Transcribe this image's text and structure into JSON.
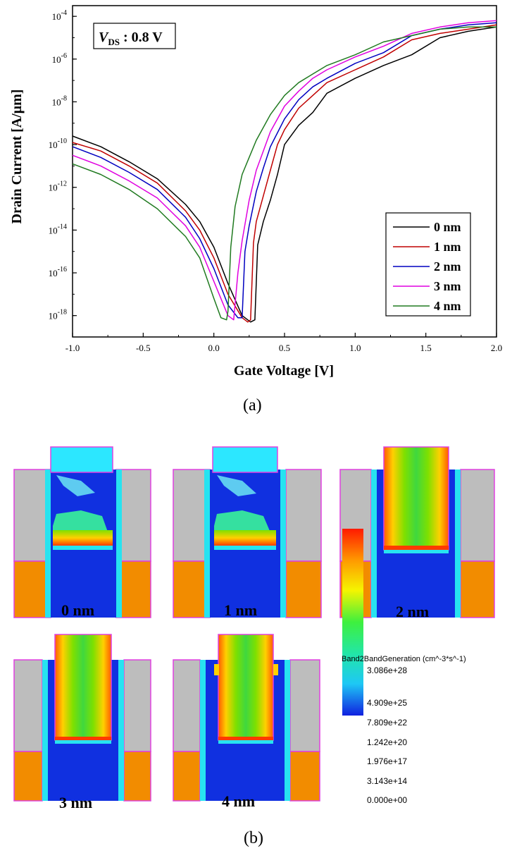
{
  "chart_data": {
    "type": "line",
    "title": "",
    "xlabel": "Gate Voltage [V]",
    "ylabel": "Drain Current [A/μm]",
    "xlim": [
      -1.0,
      2.0
    ],
    "ylim_log10": [
      -19,
      -3.5
    ],
    "log_y": true,
    "x_ticks": [
      "-1.0",
      "-0.5",
      "0.0",
      "0.5",
      "1.0",
      "1.5",
      "2.0"
    ],
    "y_tick_exponents": [
      "-18",
      "-16",
      "-14",
      "-12",
      "-10",
      "-8",
      "-6",
      "-4"
    ],
    "y_tick_base": "10",
    "annotation_main": "V",
    "annotation_sub": "DS",
    "annotation_rest": " : 0.8 V",
    "legend_position": "lower-right",
    "series": [
      {
        "name": "0 nm",
        "color": "#000000",
        "x": [
          -1.0,
          -0.8,
          -0.6,
          -0.4,
          -0.2,
          -0.1,
          0.0,
          0.1,
          0.2,
          0.26,
          0.29,
          0.31,
          0.35,
          0.4,
          0.45,
          0.5,
          0.6,
          0.7,
          0.8,
          1.0,
          1.2,
          1.4,
          1.6,
          1.8,
          2.0
        ],
        "log_y": [
          -9.6,
          -10.1,
          -10.8,
          -11.6,
          -12.8,
          -13.6,
          -14.8,
          -16.5,
          -18.0,
          -18.3,
          -18.2,
          -14.7,
          -13.6,
          -12.6,
          -11.4,
          -10.0,
          -9.1,
          -8.5,
          -7.6,
          -6.9,
          -6.3,
          -5.8,
          -5.0,
          -4.7,
          -4.5
        ]
      },
      {
        "name": "1 nm",
        "color": "#c00000",
        "x": [
          -1.0,
          -0.8,
          -0.6,
          -0.4,
          -0.2,
          -0.1,
          0.0,
          0.1,
          0.2,
          0.24,
          0.26,
          0.28,
          0.3,
          0.35,
          0.4,
          0.45,
          0.5,
          0.6,
          0.7,
          0.8,
          1.0,
          1.2,
          1.4,
          1.6,
          1.8,
          2.0
        ],
        "log_y": [
          -9.9,
          -10.3,
          -11.0,
          -11.8,
          -13.1,
          -14.0,
          -15.3,
          -17.0,
          -18.1,
          -18.3,
          -18.2,
          -14.6,
          -13.6,
          -12.4,
          -11.2,
          -10.0,
          -9.3,
          -8.3,
          -7.7,
          -7.1,
          -6.5,
          -5.9,
          -5.1,
          -4.8,
          -4.6,
          -4.4
        ]
      },
      {
        "name": "2 nm",
        "color": "#0000c0",
        "x": [
          -1.0,
          -0.8,
          -0.6,
          -0.4,
          -0.2,
          -0.1,
          0.0,
          0.1,
          0.17,
          0.2,
          0.22,
          0.25,
          0.3,
          0.35,
          0.4,
          0.5,
          0.6,
          0.7,
          0.8,
          1.0,
          1.2,
          1.4,
          1.6,
          1.8,
          2.0
        ],
        "log_y": [
          -10.1,
          -10.6,
          -11.3,
          -12.1,
          -13.4,
          -14.4,
          -15.8,
          -17.5,
          -18.1,
          -18.1,
          -15.0,
          -13.8,
          -12.2,
          -11.1,
          -10.1,
          -8.8,
          -7.9,
          -7.3,
          -6.9,
          -6.2,
          -5.7,
          -4.9,
          -4.6,
          -4.4,
          -4.3
        ]
      },
      {
        "name": "3 nm",
        "color": "#e000e0",
        "x": [
          -1.0,
          -0.8,
          -0.6,
          -0.4,
          -0.2,
          -0.1,
          0.0,
          0.1,
          0.14,
          0.17,
          0.2,
          0.25,
          0.3,
          0.35,
          0.4,
          0.5,
          0.6,
          0.7,
          0.8,
          1.0,
          1.2,
          1.4,
          1.6,
          1.8,
          2.0
        ],
        "log_y": [
          -10.5,
          -11.0,
          -11.7,
          -12.5,
          -13.8,
          -14.8,
          -16.4,
          -18.0,
          -18.2,
          -16.0,
          -14.5,
          -12.6,
          -11.2,
          -10.3,
          -9.4,
          -8.2,
          -7.5,
          -6.9,
          -6.5,
          -5.9,
          -5.4,
          -4.8,
          -4.5,
          -4.3,
          -4.2
        ]
      },
      {
        "name": "4 nm",
        "color": "#207a20",
        "x": [
          -1.0,
          -0.8,
          -0.6,
          -0.4,
          -0.2,
          -0.1,
          0.0,
          0.05,
          0.09,
          0.1,
          0.12,
          0.15,
          0.2,
          0.25,
          0.3,
          0.4,
          0.5,
          0.6,
          0.7,
          0.8,
          1.0,
          1.2,
          1.4,
          1.6,
          1.8,
          2.0
        ],
        "log_y": [
          -10.9,
          -11.4,
          -12.1,
          -13.0,
          -14.3,
          -15.3,
          -17.2,
          -18.1,
          -18.2,
          -17.8,
          -14.8,
          -12.9,
          -11.4,
          -10.6,
          -9.8,
          -8.6,
          -7.7,
          -7.1,
          -6.7,
          -6.3,
          -5.8,
          -5.2,
          -4.9,
          -4.6,
          -4.5,
          -4.5
        ]
      }
    ]
  },
  "panels": {
    "label_a": "(a)",
    "label_b": "(b)"
  },
  "simulation": {
    "captions": [
      "0 nm",
      "1 nm",
      "2 nm",
      "3 nm",
      "4 nm"
    ],
    "colorbar_title": "Band2BandGeneration (cm^-3*s^-1)",
    "colorbar_ticks": [
      "3.086e+28",
      "4.909e+25",
      "7.809e+22",
      "1.242e+20",
      "1.976e+17",
      "3.143e+14",
      "0.000e+00"
    ],
    "colors": {
      "gray": "#bdbdbd",
      "orange": "#f28c00",
      "blue": "#1030e0",
      "cyan": "#27e3f0",
      "magenta": "#e040e0"
    }
  }
}
